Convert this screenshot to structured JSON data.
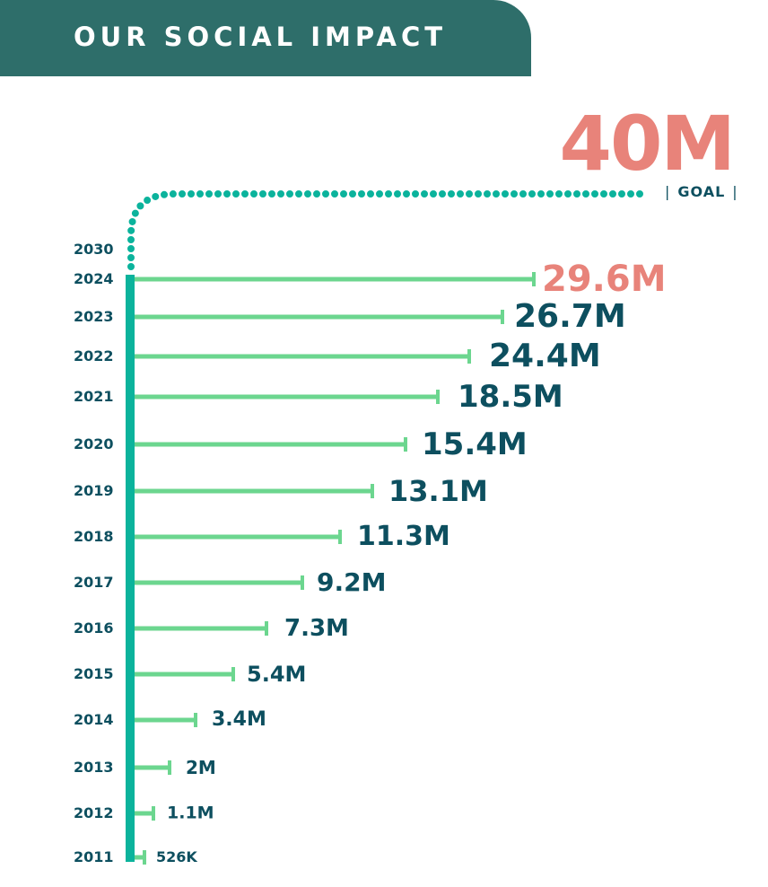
{
  "header": {
    "title": "OUR SOCIAL IMPACT"
  },
  "goal": {
    "value": "40M",
    "label": "GOAL",
    "year": "2030"
  },
  "colors": {
    "header": "#2e6e6a",
    "spine": "#0bb39c",
    "bar": "#6cd68f",
    "text": "#0d4f5f",
    "highlight": "#e8837a"
  },
  "chart_data": {
    "type": "bar",
    "orientation": "horizontal",
    "categories": [
      "2024",
      "2023",
      "2022",
      "2021",
      "2020",
      "2019",
      "2018",
      "2017",
      "2016",
      "2015",
      "2014",
      "2013",
      "2012",
      "2011"
    ],
    "values": [
      29.6,
      26.7,
      24.4,
      18.5,
      15.4,
      13.1,
      11.3,
      9.2,
      7.3,
      5.4,
      3.4,
      2.0,
      1.1,
      0.526
    ],
    "unit": "millions",
    "labels": [
      "29.6M",
      "26.7M",
      "24.4M",
      "18.5M",
      "15.4M",
      "13.1M",
      "11.3M",
      "9.2M",
      "7.3M",
      "5.4M",
      "3.4M",
      "2M",
      "1.1M",
      "526K"
    ],
    "highlight": "2024",
    "target": {
      "year": "2030",
      "value": 40,
      "label": "40M"
    }
  }
}
